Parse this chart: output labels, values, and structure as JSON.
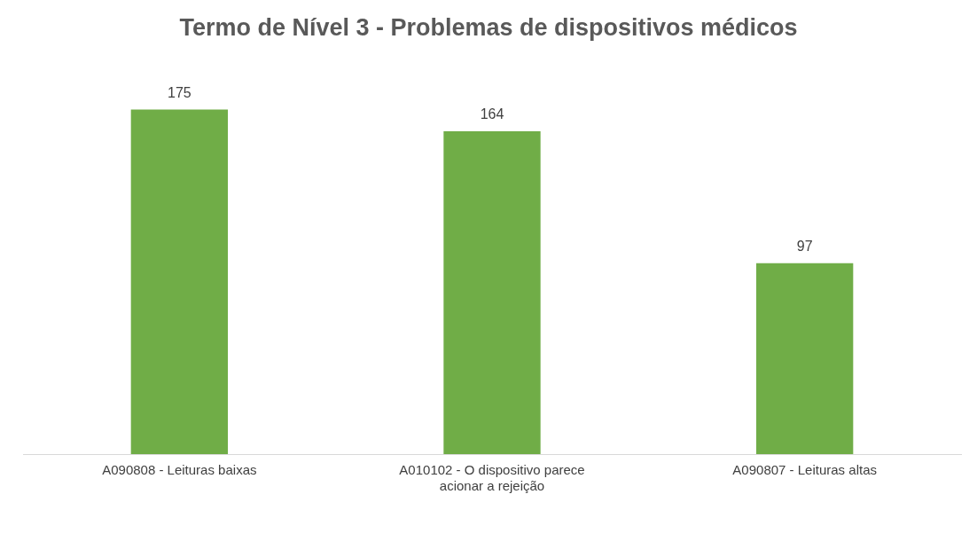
{
  "chart_data": {
    "type": "bar",
    "title": "Termo de Nível 3 - Problemas de dispositivos médicos",
    "categories": [
      "A090808 - Leituras baixas",
      "A010102 - O dispositivo parece acionar a rejeição",
      "A090807 - Leituras altas"
    ],
    "values": [
      175,
      164,
      97
    ],
    "color": "#70ad47",
    "data_labels": true,
    "relative": false,
    "grid": false,
    "legend": false
  }
}
